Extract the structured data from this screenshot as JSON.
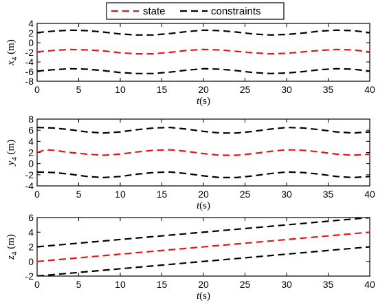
{
  "legend": {
    "entries": [
      "state",
      "constraints"
    ]
  },
  "colors": {
    "state": "#e8141a",
    "constraints": "#000000"
  },
  "chart_data": [
    {
      "type": "line",
      "xlabel_italic": "t",
      "xlabel_rest": "(s)",
      "ylabel_var": "x",
      "ylabel_sub": "4",
      "ylabel_unit": " (m)",
      "xlim": [
        0,
        40
      ],
      "ylim": [
        -8,
        4
      ],
      "xticks": [
        "0",
        "5",
        "10",
        "15",
        "20",
        "25",
        "30",
        "35",
        "40"
      ],
      "xtick_values": [
        0,
        5,
        10,
        15,
        20,
        25,
        30,
        35,
        40
      ],
      "yticks": [
        "-8",
        "-6",
        "-4",
        "-2",
        "0",
        "2",
        "4"
      ],
      "ytick_values": [
        -8,
        -6,
        -4,
        -2,
        0,
        2,
        4
      ],
      "grid": false,
      "legend_position": "top-center",
      "series": [
        {
          "name": "state",
          "style": "dashed",
          "x": [
            0,
            2,
            4,
            6,
            8,
            10,
            12,
            14,
            16,
            18,
            20,
            22,
            24,
            26,
            28,
            30,
            32,
            34,
            36,
            38,
            40
          ],
          "y": [
            -1.9,
            -1.6,
            -1.4,
            -1.5,
            -1.7,
            -2.1,
            -2.3,
            -2.3,
            -2.0,
            -1.6,
            -1.4,
            -1.5,
            -1.8,
            -2.1,
            -2.3,
            -2.2,
            -1.9,
            -1.6,
            -1.4,
            -1.5,
            -1.9
          ]
        },
        {
          "name": "constraints",
          "style": "dashed",
          "x": [
            0,
            2,
            4,
            6,
            8,
            10,
            12,
            14,
            16,
            18,
            20,
            22,
            24,
            26,
            28,
            30,
            32,
            34,
            36,
            38,
            40
          ],
          "y": [
            2.1,
            2.4,
            2.6,
            2.5,
            2.2,
            1.8,
            1.6,
            1.6,
            1.9,
            2.3,
            2.6,
            2.5,
            2.2,
            1.8,
            1.6,
            1.7,
            2.0,
            2.4,
            2.6,
            2.5,
            2.1
          ]
        },
        {
          "name": "constraints",
          "style": "dashed",
          "x": [
            0,
            2,
            4,
            6,
            8,
            10,
            12,
            14,
            16,
            18,
            20,
            22,
            24,
            26,
            28,
            30,
            32,
            34,
            36,
            38,
            40
          ],
          "y": [
            -5.9,
            -5.6,
            -5.4,
            -5.5,
            -5.8,
            -6.2,
            -6.4,
            -6.4,
            -6.1,
            -5.7,
            -5.4,
            -5.5,
            -5.8,
            -6.2,
            -6.4,
            -6.3,
            -6.0,
            -5.6,
            -5.4,
            -5.5,
            -5.9
          ]
        }
      ]
    },
    {
      "type": "line",
      "xlabel_italic": "t",
      "xlabel_rest": "(s)",
      "ylabel_var": "y",
      "ylabel_sub": "4",
      "ylabel_unit": " (m)",
      "xlim": [
        0,
        40
      ],
      "ylim": [
        -4,
        8
      ],
      "xticks": [
        "0",
        "5",
        "10",
        "15",
        "20",
        "25",
        "30",
        "35",
        "40"
      ],
      "xtick_values": [
        0,
        5,
        10,
        15,
        20,
        25,
        30,
        35,
        40
      ],
      "yticks": [
        "-4",
        "-2",
        "0",
        "2",
        "4",
        "6",
        "8"
      ],
      "ytick_values": [
        -4,
        -2,
        0,
        2,
        4,
        6,
        8
      ],
      "grid": false,
      "series": [
        {
          "name": "state",
          "style": "dashed",
          "x": [
            0,
            1,
            2,
            4,
            6,
            8,
            10,
            12,
            14,
            16,
            18,
            20,
            22,
            24,
            26,
            28,
            30,
            32,
            34,
            36,
            38,
            40
          ],
          "y": [
            2.0,
            2.5,
            2.4,
            2.0,
            1.7,
            1.5,
            1.7,
            2.1,
            2.4,
            2.5,
            2.2,
            1.8,
            1.5,
            1.5,
            1.8,
            2.2,
            2.5,
            2.4,
            2.1,
            1.7,
            1.5,
            1.7
          ]
        },
        {
          "name": "constraints",
          "style": "dashed",
          "x": [
            0,
            2,
            4,
            6,
            8,
            10,
            12,
            14,
            16,
            18,
            20,
            22,
            24,
            26,
            28,
            30,
            32,
            34,
            36,
            38,
            40
          ],
          "y": [
            6.5,
            6.4,
            6.1,
            5.7,
            5.5,
            5.7,
            6.1,
            6.4,
            6.5,
            6.2,
            5.8,
            5.5,
            5.5,
            5.8,
            6.2,
            6.5,
            6.4,
            6.1,
            5.7,
            5.5,
            5.7
          ]
        },
        {
          "name": "constraints",
          "style": "dashed",
          "x": [
            0,
            2,
            4,
            6,
            8,
            10,
            12,
            14,
            16,
            18,
            20,
            22,
            24,
            26,
            28,
            30,
            32,
            34,
            36,
            38,
            40
          ],
          "y": [
            -1.5,
            -1.6,
            -1.9,
            -2.3,
            -2.5,
            -2.3,
            -1.9,
            -1.6,
            -1.5,
            -1.8,
            -2.2,
            -2.5,
            -2.5,
            -2.2,
            -1.8,
            -1.5,
            -1.6,
            -1.9,
            -2.3,
            -2.5,
            -2.3
          ]
        }
      ]
    },
    {
      "type": "line",
      "xlabel_italic": "t",
      "xlabel_rest": "(s)",
      "ylabel_var": "z",
      "ylabel_sub": "4",
      "ylabel_unit": " (m)",
      "xlim": [
        0,
        40
      ],
      "ylim": [
        -2,
        6
      ],
      "xticks": [
        "0",
        "5",
        "10",
        "15",
        "20",
        "25",
        "30",
        "35",
        "40"
      ],
      "xtick_values": [
        0,
        5,
        10,
        15,
        20,
        25,
        30,
        35,
        40
      ],
      "yticks": [
        "-2",
        "0",
        "2",
        "4",
        "6"
      ],
      "ytick_values": [
        -2,
        0,
        2,
        4,
        6
      ],
      "grid": false,
      "series": [
        {
          "name": "state",
          "style": "dashed",
          "x": [
            0,
            40
          ],
          "y": [
            0,
            4
          ]
        },
        {
          "name": "constraints",
          "style": "dashed",
          "x": [
            0,
            40
          ],
          "y": [
            2,
            6
          ]
        },
        {
          "name": "constraints",
          "style": "dashed",
          "x": [
            0,
            40
          ],
          "y": [
            -2,
            2
          ]
        }
      ]
    }
  ]
}
